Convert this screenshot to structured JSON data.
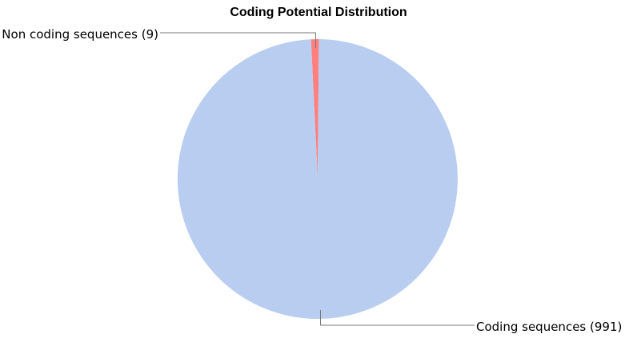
{
  "chart_data": {
    "type": "pie",
    "title": "Coding Potential Distribution",
    "slices": [
      {
        "name": "Non coding sequences",
        "label": "Non coding sequences (9)",
        "value": 9,
        "color": "#ff7f7f"
      },
      {
        "name": "Coding sequences",
        "label": "Coding sequences (991)",
        "value": 991,
        "color": "#b9cdf0"
      }
    ],
    "legend": "none"
  }
}
